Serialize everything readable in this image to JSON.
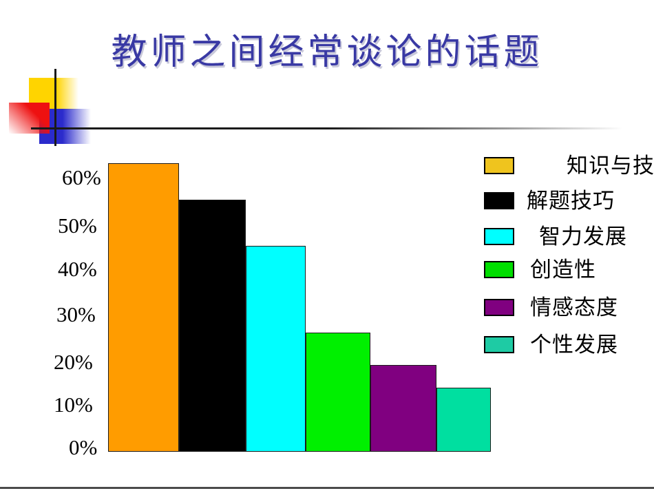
{
  "slide": {
    "title": "教师之间经常谈论的话题",
    "title_color": "#3939A4"
  },
  "chart_data": {
    "type": "bar",
    "title": "教师之间经常谈论的话题",
    "unit": "%",
    "categories": [
      "知识与技",
      "解题技巧",
      "智力发展",
      "创造性",
      "情感态度",
      "个性发展"
    ],
    "values": [
      63,
      55,
      45,
      26,
      19,
      14
    ],
    "series": [
      {
        "label": "知识与技",
        "value": 63,
        "bar_color": "#FF9C00",
        "legend_color": "#EFC41E"
      },
      {
        "label": "解题技巧",
        "value": 55,
        "bar_color": "#000000",
        "legend_color": "#000000"
      },
      {
        "label": "智力发展",
        "value": 45,
        "bar_color": "#00FFFF",
        "legend_color": "#00FFFF"
      },
      {
        "label": "创造性",
        "value": 26,
        "bar_color": "#00F000",
        "legend_color": "#00DE00"
      },
      {
        "label": "情感态度",
        "value": 19,
        "bar_color": "#800080",
        "legend_color": "#800080"
      },
      {
        "label": "个性发展",
        "value": 14,
        "bar_color": "#00DFA0",
        "legend_color": "#1ECBA4"
      }
    ],
    "y_ticks": [
      "60%",
      "50%",
      "40%",
      "30%",
      "20%",
      "10%",
      "0%"
    ],
    "ylim": [
      0,
      66
    ],
    "grid": false,
    "legend_position": "right"
  },
  "decor": {
    "yellow_square": "#FFD400",
    "red_square": "#EE1111",
    "blue_square": "#2B2BCC",
    "crosshair": "#1A1A1A",
    "slide_edge": "#4A4A4A"
  }
}
